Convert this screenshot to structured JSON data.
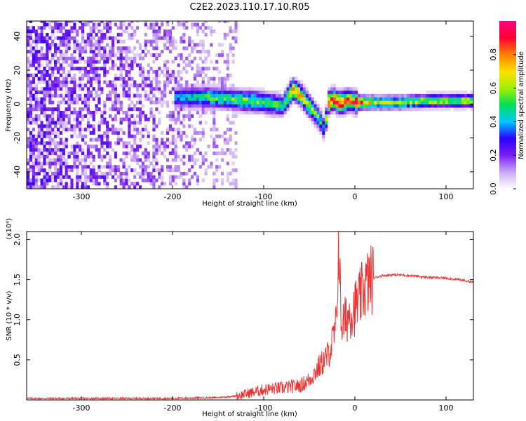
{
  "title": "C2E2.2023.110.17.10.R05",
  "chart_data": [
    {
      "type": "heatmap",
      "xlabel": "Height of straight line (km)",
      "ylabel": "Frequency (Hz)",
      "xlim": [
        -360,
        130
      ],
      "ylim": [
        -50,
        49
      ],
      "xticks": [
        -300,
        -200,
        -100,
        0,
        100
      ],
      "yticks": [
        -40,
        -20,
        0,
        20,
        40
      ],
      "colorbar": {
        "label": "Normalized spectral amplitude",
        "range": [
          0,
          1
        ],
        "ticks": [
          0.0,
          0.2,
          0.4,
          0.6,
          0.8
        ],
        "colormap": [
          "#ffffff",
          "#c9a8f5",
          "#7a1ef0",
          "#2a00ff",
          "#00c8ff",
          "#00e05a",
          "#a0f000",
          "#ffe000",
          "#ff8000",
          "#ff0030",
          "#ff0080"
        ]
      },
      "ridge": {
        "description_points_x": [
          -200,
          -180,
          -160,
          -140,
          -120,
          -100,
          -80,
          -70,
          -60,
          -50,
          -40,
          -35,
          -30,
          -25,
          -20,
          -15,
          -10,
          -5,
          0,
          20,
          50,
          80,
          110,
          130
        ],
        "description_points_y": [
          3,
          3,
          3,
          2,
          1,
          0,
          -2,
          8,
          4,
          -3,
          -10,
          -16,
          0,
          2,
          0,
          0,
          1,
          1,
          0,
          0,
          0,
          1,
          1,
          1
        ],
        "peak_amplitude_note": [
          0.35,
          0.45,
          0.5,
          0.5,
          0.55,
          0.5,
          0.5,
          0.8,
          0.7,
          0.6,
          0.5,
          0.4,
          0.9,
          0.85,
          0.9,
          0.9,
          0.85,
          0.7,
          0.9,
          0.6,
          0.6,
          0.6,
          0.6,
          0.6
        ]
      },
      "noise_region_x": [
        -360,
        -130
      ]
    },
    {
      "type": "line",
      "xlabel": "Height of straight line (km)",
      "ylabel": "SNR (10 * v/v)",
      "yunit": "(x10⁴)",
      "xlim": [
        -360,
        130
      ],
      "ylim": [
        0,
        2.1
      ],
      "xticks": [
        -300,
        -200,
        -100,
        0,
        100
      ],
      "yticks": [
        0.5,
        1.0,
        1.5,
        2.0
      ],
      "line_color": "#ee3333",
      "series": [
        {
          "x": [
            -360,
            -300,
            -200,
            -150,
            -130,
            -110,
            -100,
            -80,
            -60,
            -50,
            -40,
            -30,
            -25,
            -20,
            -18,
            -15,
            -10,
            -5,
            0,
            5,
            10,
            15,
            20,
            30,
            40,
            50,
            60,
            80,
            100,
            120,
            130
          ],
          "y": [
            0.02,
            0.02,
            0.02,
            0.03,
            0.05,
            0.1,
            0.13,
            0.15,
            0.18,
            0.25,
            0.4,
            0.55,
            0.7,
            0.95,
            2.05,
            0.95,
            1.0,
            1.1,
            1.15,
            1.25,
            1.4,
            1.48,
            1.52,
            1.55,
            1.56,
            1.56,
            1.55,
            1.53,
            1.52,
            1.49,
            1.47
          ]
        }
      ]
    }
  ]
}
